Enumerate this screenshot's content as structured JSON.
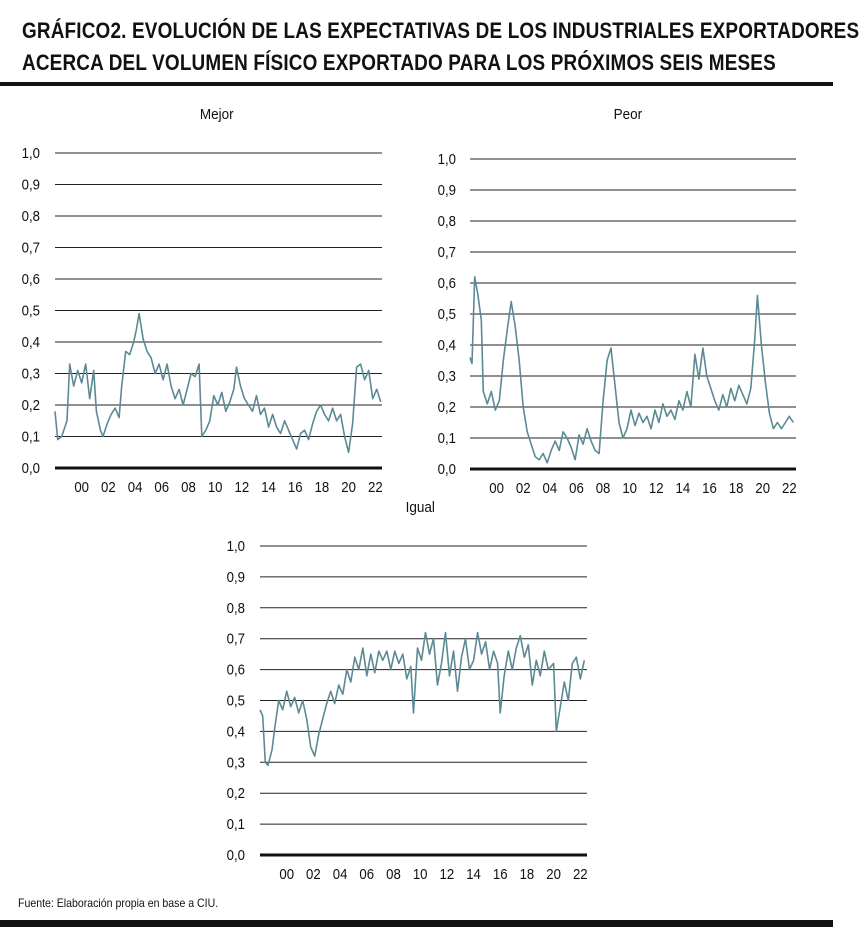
{
  "title": {
    "line1": "GRÁFICO2. EVOLUCIÓN DE LAS EXPECTATIVAS DE LOS INDUSTRIALES EXPORTADORES",
    "line2": "ACERCA DEL VOLUMEN FÍSICO EXPORTADO PARA LOS PRÓXIMOS SEIS MESES"
  },
  "source": "Fuente: Elaboración propia en base a CIU.",
  "colors": {
    "line": "#5b8a95",
    "grid": "#222222",
    "axis": "#111111"
  },
  "chart_data": [
    {
      "type": "line",
      "title": "Mejor",
      "ylim": [
        0,
        1
      ],
      "yticks": [
        "0,0",
        "0,1",
        "0,2",
        "0,3",
        "0,4",
        "0,5",
        "0,6",
        "0,7",
        "0,8",
        "0,9",
        "1,0"
      ],
      "xlim": [
        1998.0,
        2022.5
      ],
      "xticks": [
        "00",
        "02",
        "04",
        "06",
        "08",
        "10",
        "12",
        "14",
        "16",
        "18",
        "20",
        "22"
      ],
      "grid": true,
      "series": [
        {
          "values": [
            [
              1998.0,
              0.18
            ],
            [
              1998.2,
              0.09
            ],
            [
              1998.5,
              0.1
            ],
            [
              1998.9,
              0.15
            ],
            [
              1999.1,
              0.33
            ],
            [
              1999.4,
              0.26
            ],
            [
              1999.7,
              0.31
            ],
            [
              2000.0,
              0.27
            ],
            [
              2000.3,
              0.33
            ],
            [
              2000.6,
              0.22
            ],
            [
              2000.9,
              0.31
            ],
            [
              2001.1,
              0.18
            ],
            [
              2001.4,
              0.12
            ],
            [
              2001.6,
              0.1
            ],
            [
              2001.9,
              0.14
            ],
            [
              2002.2,
              0.17
            ],
            [
              2002.5,
              0.19
            ],
            [
              2002.8,
              0.16
            ],
            [
              2003.0,
              0.26
            ],
            [
              2003.3,
              0.37
            ],
            [
              2003.6,
              0.36
            ],
            [
              2003.9,
              0.4
            ],
            [
              2004.1,
              0.44
            ],
            [
              2004.3,
              0.49
            ],
            [
              2004.6,
              0.41
            ],
            [
              2004.9,
              0.37
            ],
            [
              2005.2,
              0.35
            ],
            [
              2005.5,
              0.3
            ],
            [
              2005.8,
              0.33
            ],
            [
              2006.1,
              0.28
            ],
            [
              2006.4,
              0.33
            ],
            [
              2006.7,
              0.26
            ],
            [
              2007.0,
              0.22
            ],
            [
              2007.3,
              0.25
            ],
            [
              2007.6,
              0.2
            ],
            [
              2007.9,
              0.25
            ],
            [
              2008.2,
              0.3
            ],
            [
              2008.5,
              0.29
            ],
            [
              2008.8,
              0.33
            ],
            [
              2009.0,
              0.1
            ],
            [
              2009.3,
              0.12
            ],
            [
              2009.6,
              0.15
            ],
            [
              2009.9,
              0.23
            ],
            [
              2010.2,
              0.2
            ],
            [
              2010.5,
              0.24
            ],
            [
              2010.8,
              0.18
            ],
            [
              2011.1,
              0.21
            ],
            [
              2011.4,
              0.25
            ],
            [
              2011.6,
              0.32
            ],
            [
              2011.9,
              0.26
            ],
            [
              2012.2,
              0.22
            ],
            [
              2012.5,
              0.2
            ],
            [
              2012.8,
              0.18
            ],
            [
              2013.1,
              0.23
            ],
            [
              2013.4,
              0.17
            ],
            [
              2013.7,
              0.19
            ],
            [
              2014.0,
              0.13
            ],
            [
              2014.3,
              0.17
            ],
            [
              2014.6,
              0.13
            ],
            [
              2014.9,
              0.11
            ],
            [
              2015.2,
              0.15
            ],
            [
              2015.5,
              0.12
            ],
            [
              2015.8,
              0.09
            ],
            [
              2016.1,
              0.06
            ],
            [
              2016.4,
              0.11
            ],
            [
              2016.7,
              0.12
            ],
            [
              2017.0,
              0.09
            ],
            [
              2017.3,
              0.14
            ],
            [
              2017.6,
              0.18
            ],
            [
              2017.9,
              0.2
            ],
            [
              2018.2,
              0.17
            ],
            [
              2018.5,
              0.15
            ],
            [
              2018.8,
              0.19
            ],
            [
              2019.1,
              0.15
            ],
            [
              2019.4,
              0.17
            ],
            [
              2019.7,
              0.1
            ],
            [
              2020.0,
              0.05
            ],
            [
              2020.3,
              0.14
            ],
            [
              2020.6,
              0.32
            ],
            [
              2020.9,
              0.33
            ],
            [
              2021.2,
              0.28
            ],
            [
              2021.5,
              0.31
            ],
            [
              2021.8,
              0.22
            ],
            [
              2022.1,
              0.25
            ],
            [
              2022.4,
              0.21
            ]
          ]
        }
      ]
    },
    {
      "type": "line",
      "title": "Peor",
      "ylim": [
        0,
        1
      ],
      "yticks": [
        "0,0",
        "0,1",
        "0,2",
        "0,3",
        "0,4",
        "0,5",
        "0,6",
        "0,7",
        "0,8",
        "0,9",
        "1,0"
      ],
      "xlim": [
        1998.0,
        2022.5
      ],
      "xticks": [
        "00",
        "02",
        "04",
        "06",
        "08",
        "10",
        "12",
        "14",
        "16",
        "18",
        "20",
        "22"
      ],
      "grid": true,
      "series": [
        {
          "values": [
            [
              1998.0,
              0.36
            ],
            [
              1998.15,
              0.34
            ],
            [
              1998.35,
              0.62
            ],
            [
              1998.6,
              0.56
            ],
            [
              1998.85,
              0.48
            ],
            [
              1999.0,
              0.25
            ],
            [
              1999.3,
              0.21
            ],
            [
              1999.6,
              0.25
            ],
            [
              1999.9,
              0.19
            ],
            [
              2000.2,
              0.22
            ],
            [
              2000.5,
              0.35
            ],
            [
              2000.8,
              0.45
            ],
            [
              2001.1,
              0.54
            ],
            [
              2001.4,
              0.46
            ],
            [
              2001.7,
              0.35
            ],
            [
              2002.0,
              0.2
            ],
            [
              2002.3,
              0.12
            ],
            [
              2002.6,
              0.08
            ],
            [
              2002.9,
              0.04
            ],
            [
              2003.2,
              0.03
            ],
            [
              2003.5,
              0.05
            ],
            [
              2003.8,
              0.02
            ],
            [
              2004.1,
              0.06
            ],
            [
              2004.4,
              0.09
            ],
            [
              2004.7,
              0.06
            ],
            [
              2005.0,
              0.12
            ],
            [
              2005.3,
              0.1
            ],
            [
              2005.6,
              0.07
            ],
            [
              2005.9,
              0.03
            ],
            [
              2006.2,
              0.11
            ],
            [
              2006.5,
              0.08
            ],
            [
              2006.8,
              0.13
            ],
            [
              2007.1,
              0.09
            ],
            [
              2007.4,
              0.06
            ],
            [
              2007.7,
              0.05
            ],
            [
              2008.0,
              0.22
            ],
            [
              2008.3,
              0.35
            ],
            [
              2008.6,
              0.39
            ],
            [
              2008.9,
              0.27
            ],
            [
              2009.2,
              0.15
            ],
            [
              2009.5,
              0.1
            ],
            [
              2009.8,
              0.13
            ],
            [
              2010.1,
              0.19
            ],
            [
              2010.4,
              0.14
            ],
            [
              2010.7,
              0.18
            ],
            [
              2011.0,
              0.15
            ],
            [
              2011.3,
              0.17
            ],
            [
              2011.6,
              0.13
            ],
            [
              2011.9,
              0.19
            ],
            [
              2012.2,
              0.15
            ],
            [
              2012.5,
              0.21
            ],
            [
              2012.8,
              0.17
            ],
            [
              2013.1,
              0.19
            ],
            [
              2013.4,
              0.16
            ],
            [
              2013.7,
              0.22
            ],
            [
              2014.0,
              0.19
            ],
            [
              2014.3,
              0.25
            ],
            [
              2014.6,
              0.2
            ],
            [
              2014.9,
              0.37
            ],
            [
              2015.2,
              0.29
            ],
            [
              2015.5,
              0.39
            ],
            [
              2015.8,
              0.3
            ],
            [
              2016.1,
              0.26
            ],
            [
              2016.4,
              0.22
            ],
            [
              2016.7,
              0.19
            ],
            [
              2017.0,
              0.24
            ],
            [
              2017.3,
              0.2
            ],
            [
              2017.6,
              0.26
            ],
            [
              2017.9,
              0.22
            ],
            [
              2018.2,
              0.27
            ],
            [
              2018.5,
              0.24
            ],
            [
              2018.8,
              0.21
            ],
            [
              2019.1,
              0.26
            ],
            [
              2019.4,
              0.42
            ],
            [
              2019.6,
              0.56
            ],
            [
              2019.9,
              0.4
            ],
            [
              2020.2,
              0.28
            ],
            [
              2020.5,
              0.18
            ],
            [
              2020.8,
              0.13
            ],
            [
              2021.1,
              0.15
            ],
            [
              2021.4,
              0.13
            ],
            [
              2021.7,
              0.15
            ],
            [
              2022.0,
              0.17
            ],
            [
              2022.3,
              0.15
            ]
          ]
        }
      ]
    },
    {
      "type": "line",
      "title": "Igual",
      "ylim": [
        0,
        1
      ],
      "yticks": [
        "0,0",
        "0,1",
        "0,2",
        "0,3",
        "0,4",
        "0,5",
        "0,6",
        "0,7",
        "0,8",
        "0,9",
        "1,0"
      ],
      "xlim": [
        1998.0,
        2022.5
      ],
      "xticks": [
        "00",
        "02",
        "04",
        "06",
        "08",
        "10",
        "12",
        "14",
        "16",
        "18",
        "20",
        "22"
      ],
      "grid": true,
      "series": [
        {
          "values": [
            [
              1998.0,
              0.47
            ],
            [
              1998.2,
              0.45
            ],
            [
              1998.4,
              0.3
            ],
            [
              1998.6,
              0.29
            ],
            [
              1998.9,
              0.34
            ],
            [
              1999.1,
              0.41
            ],
            [
              1999.4,
              0.5
            ],
            [
              1999.7,
              0.47
            ],
            [
              2000.0,
              0.53
            ],
            [
              2000.3,
              0.48
            ],
            [
              2000.6,
              0.51
            ],
            [
              2000.9,
              0.46
            ],
            [
              2001.2,
              0.5
            ],
            [
              2001.5,
              0.44
            ],
            [
              2001.8,
              0.35
            ],
            [
              2002.1,
              0.32
            ],
            [
              2002.4,
              0.39
            ],
            [
              2002.7,
              0.44
            ],
            [
              2003.0,
              0.49
            ],
            [
              2003.3,
              0.53
            ],
            [
              2003.6,
              0.49
            ],
            [
              2003.9,
              0.55
            ],
            [
              2004.2,
              0.52
            ],
            [
              2004.5,
              0.6
            ],
            [
              2004.8,
              0.56
            ],
            [
              2005.1,
              0.64
            ],
            [
              2005.4,
              0.6
            ],
            [
              2005.7,
              0.67
            ],
            [
              2006.0,
              0.58
            ],
            [
              2006.3,
              0.65
            ],
            [
              2006.6,
              0.59
            ],
            [
              2006.9,
              0.66
            ],
            [
              2007.2,
              0.63
            ],
            [
              2007.5,
              0.66
            ],
            [
              2007.8,
              0.6
            ],
            [
              2008.1,
              0.66
            ],
            [
              2008.4,
              0.62
            ],
            [
              2008.7,
              0.65
            ],
            [
              2009.0,
              0.57
            ],
            [
              2009.3,
              0.61
            ],
            [
              2009.5,
              0.46
            ],
            [
              2009.8,
              0.67
            ],
            [
              2010.1,
              0.63
            ],
            [
              2010.4,
              0.72
            ],
            [
              2010.7,
              0.65
            ],
            [
              2011.0,
              0.7
            ],
            [
              2011.3,
              0.55
            ],
            [
              2011.6,
              0.62
            ],
            [
              2011.9,
              0.72
            ],
            [
              2012.2,
              0.58
            ],
            [
              2012.5,
              0.66
            ],
            [
              2012.8,
              0.53
            ],
            [
              2013.1,
              0.64
            ],
            [
              2013.4,
              0.7
            ],
            [
              2013.7,
              0.6
            ],
            [
              2014.0,
              0.63
            ],
            [
              2014.3,
              0.72
            ],
            [
              2014.6,
              0.65
            ],
            [
              2014.9,
              0.69
            ],
            [
              2015.2,
              0.6
            ],
            [
              2015.5,
              0.66
            ],
            [
              2015.8,
              0.62
            ],
            [
              2016.0,
              0.46
            ],
            [
              2016.3,
              0.58
            ],
            [
              2016.6,
              0.66
            ],
            [
              2016.9,
              0.6
            ],
            [
              2017.2,
              0.67
            ],
            [
              2017.5,
              0.71
            ],
            [
              2017.8,
              0.64
            ],
            [
              2018.1,
              0.68
            ],
            [
              2018.4,
              0.55
            ],
            [
              2018.7,
              0.63
            ],
            [
              2019.0,
              0.58
            ],
            [
              2019.3,
              0.66
            ],
            [
              2019.6,
              0.6
            ],
            [
              2020.0,
              0.62
            ],
            [
              2020.2,
              0.4
            ],
            [
              2020.5,
              0.48
            ],
            [
              2020.8,
              0.56
            ],
            [
              2021.1,
              0.5
            ],
            [
              2021.4,
              0.62
            ],
            [
              2021.7,
              0.64
            ],
            [
              2022.0,
              0.57
            ],
            [
              2022.3,
              0.63
            ]
          ]
        }
      ]
    }
  ]
}
